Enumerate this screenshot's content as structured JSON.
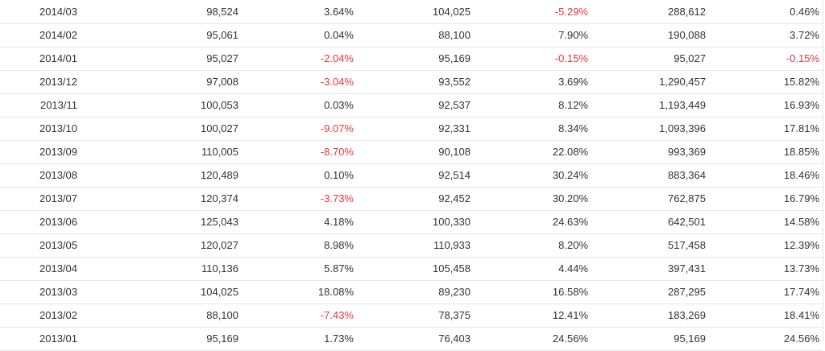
{
  "colors": {
    "text": "#333333",
    "negative": "#e8343e",
    "row_border": "#e6e6e6"
  },
  "rows": [
    {
      "month": "2014/03",
      "a": "98,524",
      "b": "3.64%",
      "c": "104,025",
      "d": "-5.29%",
      "e": "288,612",
      "f": "0.46%"
    },
    {
      "month": "2014/02",
      "a": "95,061",
      "b": "0.04%",
      "c": "88,100",
      "d": "7.90%",
      "e": "190,088",
      "f": "3.72%"
    },
    {
      "month": "2014/01",
      "a": "95,027",
      "b": "-2.04%",
      "c": "95,169",
      "d": "-0.15%",
      "e": "95,027",
      "f": "-0.15%"
    },
    {
      "month": "2013/12",
      "a": "97,008",
      "b": "-3.04%",
      "c": "93,552",
      "d": "3.69%",
      "e": "1,290,457",
      "f": "15.82%"
    },
    {
      "month": "2013/11",
      "a": "100,053",
      "b": "0.03%",
      "c": "92,537",
      "d": "8.12%",
      "e": "1,193,449",
      "f": "16.93%"
    },
    {
      "month": "2013/10",
      "a": "100,027",
      "b": "-9.07%",
      "c": "92,331",
      "d": "8.34%",
      "e": "1,093,396",
      "f": "17.81%"
    },
    {
      "month": "2013/09",
      "a": "110,005",
      "b": "-8.70%",
      "c": "90,108",
      "d": "22.08%",
      "e": "993,369",
      "f": "18.85%"
    },
    {
      "month": "2013/08",
      "a": "120,489",
      "b": "0.10%",
      "c": "92,514",
      "d": "30.24%",
      "e": "883,364",
      "f": "18.46%"
    },
    {
      "month": "2013/07",
      "a": "120,374",
      "b": "-3.73%",
      "c": "92,452",
      "d": "30.20%",
      "e": "762,875",
      "f": "16.79%"
    },
    {
      "month": "2013/06",
      "a": "125,043",
      "b": "4.18%",
      "c": "100,330",
      "d": "24.63%",
      "e": "642,501",
      "f": "14.58%"
    },
    {
      "month": "2013/05",
      "a": "120,027",
      "b": "8.98%",
      "c": "110,933",
      "d": "8.20%",
      "e": "517,458",
      "f": "12.39%"
    },
    {
      "month": "2013/04",
      "a": "110,136",
      "b": "5.87%",
      "c": "105,458",
      "d": "4.44%",
      "e": "397,431",
      "f": "13.73%"
    },
    {
      "month": "2013/03",
      "a": "104,025",
      "b": "18.08%",
      "c": "89,230",
      "d": "16.58%",
      "e": "287,295",
      "f": "17.74%"
    },
    {
      "month": "2013/02",
      "a": "88,100",
      "b": "-7.43%",
      "c": "78,375",
      "d": "12.41%",
      "e": "183,269",
      "f": "18.41%"
    },
    {
      "month": "2013/01",
      "a": "95,169",
      "b": "1.73%",
      "c": "76,403",
      "d": "24.56%",
      "e": "95,169",
      "f": "24.56%"
    }
  ]
}
